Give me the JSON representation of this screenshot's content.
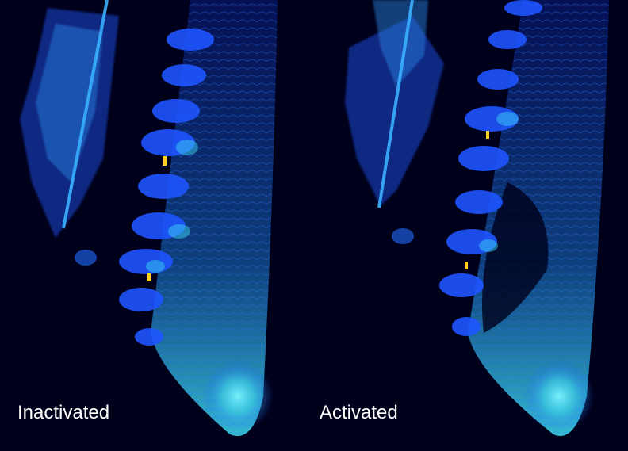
{
  "panels": [
    {
      "label": "Inactivated"
    },
    {
      "label": "Activated"
    }
  ]
}
